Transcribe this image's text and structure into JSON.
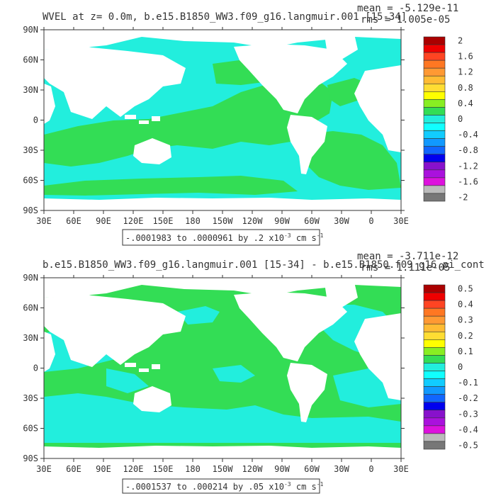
{
  "panels": [
    {
      "title": "WVEL at z=    0.0m, b.e15.B1850_WW3.f09_g16.langmuir.001 [15-34]",
      "stats": {
        "mean": "mean = -5.129e-11",
        "rms": "rms = 1.005e-05"
      },
      "range_text": "-.0001983 to .0000961 by .2 x10",
      "range_exp": "-3",
      "range_units": "cm s",
      "range_units_exp": "-1",
      "colorbar_labels": [
        "2",
        "1.6",
        "1.2",
        "0.8",
        "0.4",
        "0",
        "-0.4",
        "-0.8",
        "-1.2",
        "-1.6",
        "-2"
      ]
    },
    {
      "title": "b.e15.B1850_WW3.f09_g16.langmuir.001 [15-34] - b.e15.B1850.f09_g16.pi_cont",
      "stats": {
        "mean": "mean = -3.711e-12",
        "rms": "rms = 1.111e-05"
      },
      "range_text": "-.0001537 to .000214 by .05 x10",
      "range_exp": "-3",
      "range_units": "cm s",
      "range_units_exp": "-1",
      "colorbar_labels": [
        "0.5",
        "0.4",
        "0.3",
        "0.2",
        "0.1",
        "0",
        "-0.1",
        "-0.2",
        "-0.3",
        "-0.4",
        "-0.5"
      ]
    }
  ],
  "lat_labels": [
    "90N",
    "60N",
    "30N",
    "0",
    "30S",
    "60S",
    "90S"
  ],
  "lon_labels": [
    "30E",
    "60E",
    "90E",
    "120E",
    "150E",
    "180",
    "150W",
    "120W",
    "90W",
    "60W",
    "30W",
    "0",
    "30E"
  ],
  "colors": {
    "ocean_green": "#33dd55",
    "ocean_cyan": "#22eedd",
    "land": "#ffffff",
    "colorbar": [
      "#ab0000",
      "#ee0000",
      "#ff4422",
      "#ff7722",
      "#ff9933",
      "#ffbb33",
      "#ffdd33",
      "#ffff00",
      "#88ee22",
      "#33dd55",
      "#22eedd",
      "#11ffff",
      "#11ccff",
      "#1199ff",
      "#1166ff",
      "#0000ee",
      "#8811cc",
      "#aa11dd",
      "#dd11dd",
      "#bbbbbb",
      "#777777"
    ]
  }
}
